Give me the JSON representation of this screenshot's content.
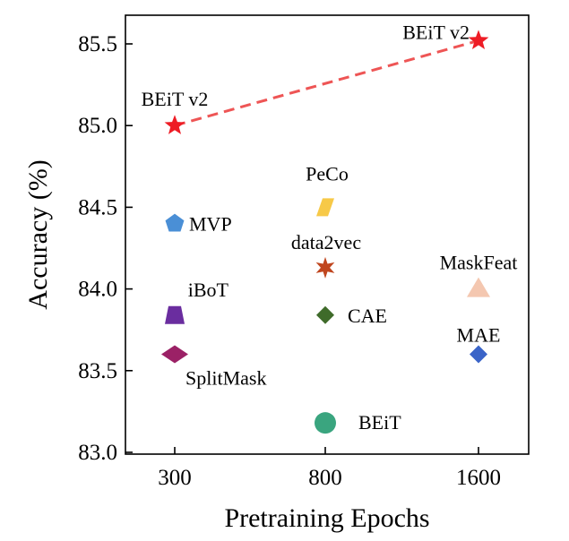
{
  "chart_data": {
    "type": "scatter",
    "title": "",
    "xlabel": "Pretraining Epochs",
    "ylabel": "Accuracy (%)",
    "x_categories": [
      "300",
      "800",
      "1600"
    ],
    "ylim": [
      83.0,
      85.6
    ],
    "yticks": [
      "83.0",
      "83.5",
      "84.0",
      "84.5",
      "85.0",
      "85.5"
    ],
    "grid": false,
    "legend": "none",
    "points": [
      {
        "label": "BEiT v2",
        "x": "300",
        "y": 85.0,
        "marker": "star",
        "color": "#ee1c25"
      },
      {
        "label": "BEiT v2",
        "x": "1600",
        "y": 85.52,
        "marker": "star",
        "color": "#ee1c25"
      },
      {
        "label": "PeCo",
        "x": "800",
        "y": 84.5,
        "marker": "parallelogram",
        "color": "#f7c948"
      },
      {
        "label": "MVP",
        "x": "300",
        "y": 84.4,
        "marker": "pentagon",
        "color": "#4a8fd6"
      },
      {
        "label": "data2vec",
        "x": "800",
        "y": 84.13,
        "marker": "star6",
        "color": "#c0461f"
      },
      {
        "label": "MaskFeat",
        "x": "1600",
        "y": 84.0,
        "marker": "triangle",
        "color": "#f4c7b0"
      },
      {
        "label": "iBoT",
        "x": "300",
        "y": 83.84,
        "marker": "trapezoid",
        "color": "#6a2d9f"
      },
      {
        "label": "CAE",
        "x": "800",
        "y": 83.84,
        "marker": "diamond",
        "color": "#3f6b2a"
      },
      {
        "label": "MAE",
        "x": "1600",
        "y": 83.6,
        "marker": "diamond",
        "color": "#3a64c8"
      },
      {
        "label": "SplitMask",
        "x": "300",
        "y": 83.6,
        "marker": "diamond-wide",
        "color": "#9b2166"
      },
      {
        "label": "BEiT",
        "x": "800",
        "y": 83.18,
        "marker": "circle",
        "color": "#3aa57f"
      }
    ],
    "lines": [
      {
        "from_point": 0,
        "to_point": 1,
        "style": "dashed",
        "color": "#ee5555"
      }
    ]
  }
}
